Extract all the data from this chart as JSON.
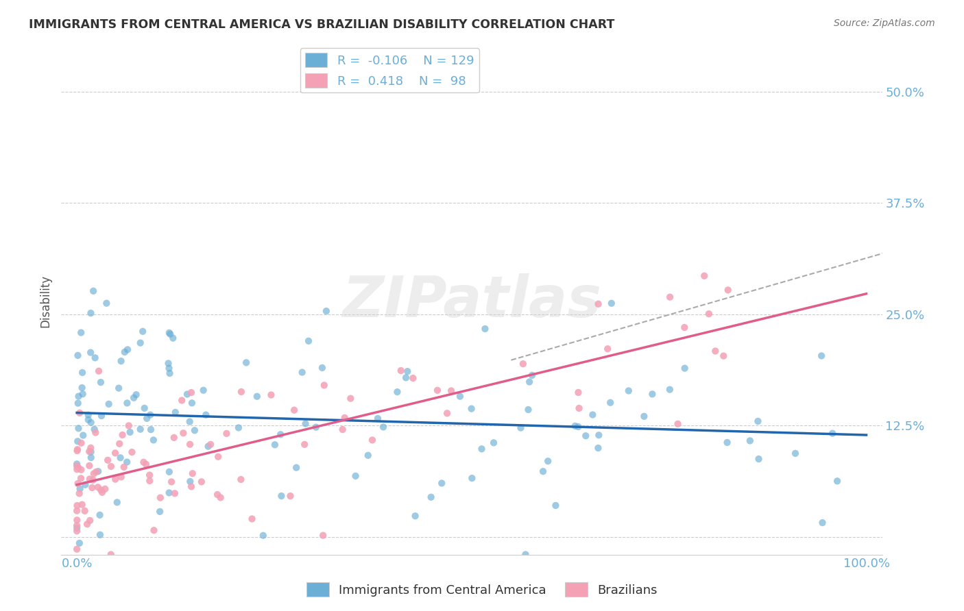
{
  "title": "IMMIGRANTS FROM CENTRAL AMERICA VS BRAZILIAN DISABILITY CORRELATION CHART",
  "source": "Source: ZipAtlas.com",
  "ylabel": "Disability",
  "watermark": "ZIPatlas",
  "xlim": [
    0.0,
    1.0
  ],
  "ylim": [
    -0.02,
    0.55
  ],
  "ytick_positions": [
    0.0,
    0.125,
    0.25,
    0.375,
    0.5
  ],
  "ytick_labels": [
    "",
    "12.5%",
    "25.0%",
    "37.5%",
    "50.0%"
  ],
  "R_blue": -0.106,
  "N_blue": 129,
  "R_pink": 0.418,
  "N_pink": 98,
  "blue_color": "#6baed6",
  "pink_color": "#f4a0b5",
  "trendline_blue_color": "#2166ac",
  "trendline_pink_color": "#e05c8a",
  "trendline_dashed_color": "#aaaaaa",
  "background_color": "#ffffff",
  "grid_color": "#cccccc",
  "axis_label_color": "#6baed6",
  "title_color": "#333333",
  "legend_label1": "Immigrants from Central America",
  "legend_label2": "Brazilians"
}
